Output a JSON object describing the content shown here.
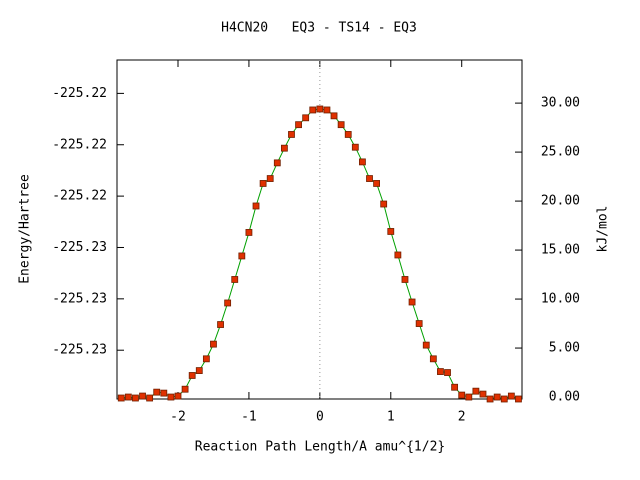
{
  "chart_data": {
    "type": "line",
    "title": "H4CN20   EQ3 - TS14 - EQ3",
    "x_label": "Reaction Path Length/A amu^{1/2}",
    "y_label": "Energy/Hartree",
    "y2_label": "kJ/mol",
    "x": [
      -2.8,
      -2.7,
      -2.6,
      -2.5,
      -2.4,
      -2.3,
      -2.2,
      -2.1,
      -2.0,
      -1.9,
      -1.8,
      -1.7,
      -1.6,
      -1.5,
      -1.4,
      -1.3,
      -1.2,
      -1.1,
      -1.0,
      -0.9,
      -0.8,
      -0.7,
      -0.6,
      -0.5,
      -0.4,
      -0.3,
      -0.2,
      -0.1,
      0.0,
      0.1,
      0.2,
      0.3,
      0.4,
      0.5,
      0.6,
      0.7,
      0.8,
      0.9,
      1.0,
      1.1,
      1.2,
      1.3,
      1.4,
      1.5,
      1.6,
      1.7,
      1.8,
      1.9,
      2.0,
      2.1,
      2.2,
      2.3,
      2.4,
      2.5,
      2.6,
      2.7,
      2.8
    ],
    "series": [
      {
        "name": "kJ/mol",
        "axis": "y2",
        "color": "#00a000",
        "marker_color": "#e03000",
        "values": [
          -0.1,
          0.0,
          -0.1,
          0.1,
          -0.1,
          0.5,
          0.4,
          0.0,
          0.1,
          0.8,
          2.2,
          2.7,
          3.9,
          5.4,
          7.4,
          9.6,
          12.0,
          14.4,
          16.8,
          19.5,
          21.8,
          22.3,
          23.9,
          25.4,
          26.8,
          27.8,
          28.5,
          29.3,
          29.4,
          29.3,
          28.7,
          27.8,
          26.8,
          25.5,
          24.0,
          22.3,
          21.8,
          19.7,
          16.9,
          14.5,
          12.0,
          9.7,
          7.5,
          5.3,
          3.9,
          2.6,
          2.5,
          1.0,
          0.2,
          0.0,
          0.6,
          0.3,
          -0.2,
          0.0,
          -0.2,
          0.1,
          -0.2
        ]
      }
    ],
    "xlim": [
      -2.86,
      2.85
    ],
    "xticks": [
      -2,
      -1,
      0,
      1,
      2
    ],
    "ylim": [
      -225.2309,
      -225.2177
    ],
    "yticks": [
      {
        "value": -225.219,
        "label": "-225.22"
      },
      {
        "value": -225.221,
        "label": "-225.22"
      },
      {
        "value": -225.223,
        "label": "-225.22"
      },
      {
        "value": -225.225,
        "label": "-225.23"
      },
      {
        "value": -225.227,
        "label": "-225.23"
      },
      {
        "value": -225.229,
        "label": "-225.23"
      }
    ],
    "y2lim": [
      -0.2,
      34.4
    ],
    "y2ticks": [
      {
        "value": 0,
        "label": "0.00"
      },
      {
        "value": 5,
        "label": "5.00"
      },
      {
        "value": 10,
        "label": "10.00"
      },
      {
        "value": 15,
        "label": "15.00"
      },
      {
        "value": 20,
        "label": "20.00"
      },
      {
        "value": 25,
        "label": "25.00"
      },
      {
        "value": 30,
        "label": "30.00"
      }
    ],
    "zero_line": true
  }
}
